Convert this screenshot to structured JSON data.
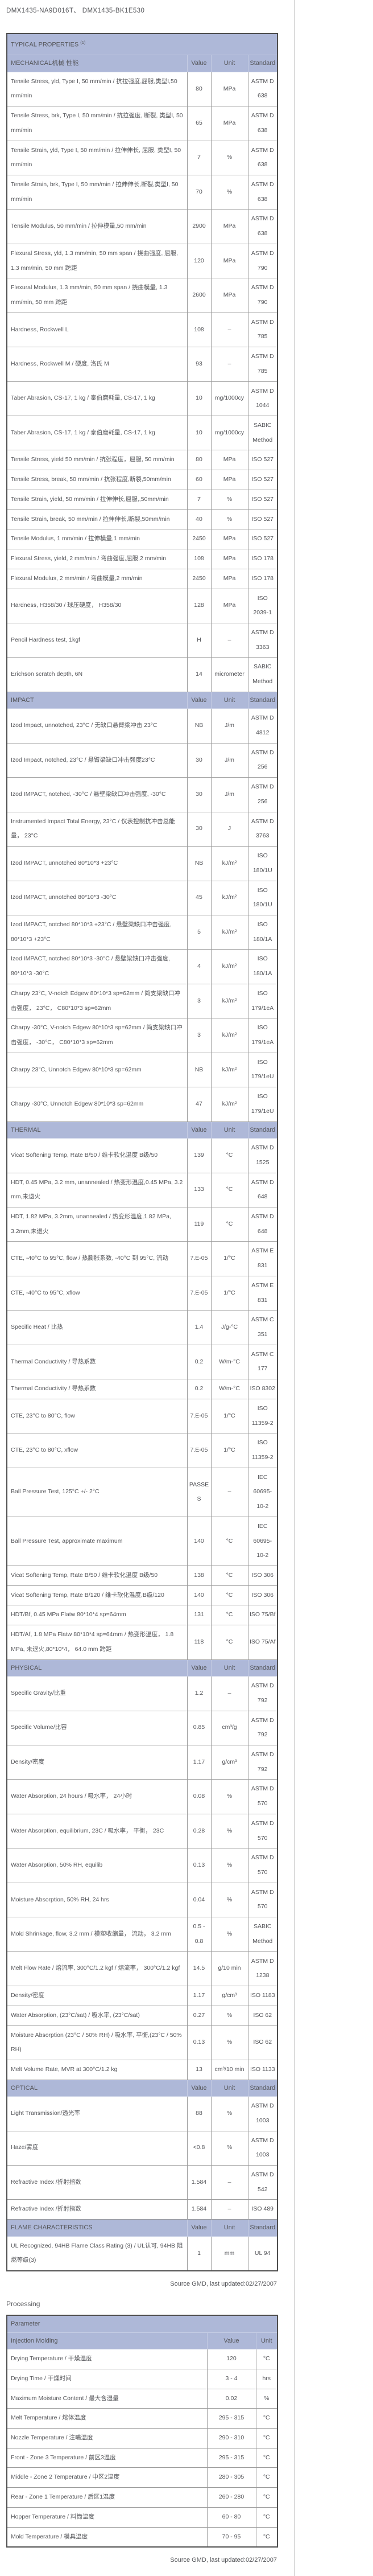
{
  "page": {
    "title": "DMX1435-NA9D016T、 DMX1435-BK1E530",
    "source_note_1": "Source GMD, last updated:02/27/2007",
    "source_note_2": "Source GMD, last updated:02/27/2007"
  },
  "colors": {
    "header_bg": "#aeb8d8",
    "text": "#55565a"
  },
  "typical_properties": {
    "title": "TYPICAL PROPERTIES",
    "title_superscript": "(1)",
    "columns": [
      "Value",
      "Unit",
      "Standard"
    ],
    "sections": [
      {
        "name": "MECHANICAL机械 性能",
        "rows": [
          {
            "property": "Tensile Stress, yld, Type I, 50 mm/min / 抗拉强度,屈服,类型I,50 mm/min",
            "value": "80",
            "unit": "MPa",
            "standard": "ASTM D 638"
          },
          {
            "property": "Tensile Stress, brk, Type I, 50 mm/min / 抗拉强度, 断裂, 类型I, 50 mm/min",
            "value": "65",
            "unit": "MPa",
            "standard": "ASTM D 638"
          },
          {
            "property": "Tensile Strain, yld, Type I, 50 mm/min / 拉伸伸长, 屈服, 类型I, 50 mm/min",
            "value": "7",
            "unit": "%",
            "standard": "ASTM D 638"
          },
          {
            "property": "Tensile Strain, brk, Type I, 50 mm/min / 拉伸伸长,断裂,类型I, 50 mm/min",
            "value": "70",
            "unit": "%",
            "standard": "ASTM D 638"
          },
          {
            "property": "Tensile Modulus, 50 mm/min / 拉伸模量,50 mm/min",
            "value": "2900",
            "unit": "MPa",
            "standard": "ASTM D 638"
          },
          {
            "property": "Flexural Stress, yld, 1.3 mm/min, 50 mm span / 挠曲强度, 屈服, 1.3 mm/min, 50 mm 跨距",
            "value": "120",
            "unit": "MPa",
            "standard": "ASTM D 790"
          },
          {
            "property": "Flexural Modulus, 1.3 mm/min, 50 mm span / 挠曲模量, 1.3 mm/min, 50 mm 跨距",
            "value": "2600",
            "unit": "MPa",
            "standard": "ASTM D 790"
          },
          {
            "property": "Hardness, Rockwell L",
            "value": "108",
            "unit": "–",
            "standard": "ASTM D 785"
          },
          {
            "property": "Hardness, Rockwell M / 硬度, 洛氏 M",
            "value": "93",
            "unit": "–",
            "standard": "ASTM D 785"
          },
          {
            "property": "Taber Abrasion, CS-17, 1 kg / 泰伯磨耗量, CS-17, 1 kg",
            "value": "10",
            "unit": "mg/1000cy",
            "standard": "ASTM D 1044"
          },
          {
            "property": "Taber Abrasion, CS-17, 1 kg / 泰伯磨耗量, CS-17, 1 kg",
            "value": "10",
            "unit": "mg/1000cy",
            "standard": "SABIC Method"
          },
          {
            "property": "Tensile Stress, yield 50 mm/min / 抗张程度，屈服, 50 mm/min",
            "value": "80",
            "unit": "MPa",
            "standard": "ISO 527"
          },
          {
            "property": "Tensile Stress, break, 50 mm/min / 抗张程度,断裂,50mm/min",
            "value": "60",
            "unit": "MPa",
            "standard": "ISO 527"
          },
          {
            "property": "Tensile Strain, yield, 50 mm/min / 拉伸伸长,屈服,,50mm/min",
            "value": "7",
            "unit": "%",
            "standard": "ISO 527"
          },
          {
            "property": "Tensile Strain, break, 50 mm/min / 拉伸伸长,断裂,50mm/min",
            "value": "40",
            "unit": "%",
            "standard": "ISO 527"
          },
          {
            "property": "Tensile Modulus, 1 mm/min / 拉伸模量,1 mm/min",
            "value": "2450",
            "unit": "MPa",
            "standard": "ISO 527"
          },
          {
            "property": "Flexural Stress, yield, 2 mm/min / 弯曲强度,屈服,2 mm/min",
            "value": "108",
            "unit": "MPa",
            "standard": "ISO 178"
          },
          {
            "property": "Flexural Modulus, 2 mm/min / 弯曲模量,2 mm/min",
            "value": "2450",
            "unit": "MPa",
            "standard": "ISO 178"
          },
          {
            "property": "Hardness, H358/30 / 球压硬度， H358/30",
            "value": "128",
            "unit": "MPa",
            "standard": "ISO 2039-1"
          },
          {
            "property": "Pencil Hardness test, 1kgf",
            "value": "H",
            "unit": "–",
            "standard": "ASTM D 3363"
          },
          {
            "property": "Erichson scratch depth, 6N",
            "value": "14",
            "unit": "micrometer",
            "standard": "SABIC Method"
          }
        ]
      },
      {
        "name": "IMPACT",
        "rows": [
          {
            "property": "Izod Impact, unnotched, 23°C / 无缺口悬臂梁冲击 23°C",
            "value": "NB",
            "unit": "J/m",
            "standard": "ASTM D 4812"
          },
          {
            "property": "Izod Impact, notched, 23°C / 悬臂梁缺口冲击强度23°C",
            "value": "30",
            "unit": "J/m",
            "standard": "ASTM D 256"
          },
          {
            "property": "Izod IMPACT, notched, -30°C / 悬壁梁缺口冲击强度, -30°C",
            "value": "30",
            "unit": "J/m",
            "standard": "ASTM D 256"
          },
          {
            "property": "Instrumented Impact Total Energy, 23°C / 仪表控制抗冲击总能量， 23°C",
            "value": "30",
            "unit": "J",
            "standard": "ASTM D 3763"
          },
          {
            "property": "Izod IMPACT, unnotched 80*10*3 +23°C",
            "value": "NB",
            "unit": "kJ/m²",
            "standard": "ISO 180/1U"
          },
          {
            "property": "Izod IMPACT, unnotched 80*10*3 -30°C",
            "value": "45",
            "unit": "kJ/m²",
            "standard": "ISO 180/1U"
          },
          {
            "property": "Izod IMPACT, notched 80*10*3 +23°C / 悬壁梁缺口冲击强度, 80*10*3 +23°C",
            "value": "5",
            "unit": "kJ/m²",
            "standard": "ISO 180/1A"
          },
          {
            "property": "Izod IMPACT, notched 80*10*3 -30°C / 悬壁梁缺口冲击强度, 80*10*3 -30°C",
            "value": "4",
            "unit": "kJ/m²",
            "standard": "ISO 180/1A"
          },
          {
            "property": "Charpy 23°C, V-notch Edgew 80*10*3 sp=62mm / 简支梁缺口冲击强度， 23°C， C80*10*3 sp=62mm",
            "value": "3",
            "unit": "kJ/m²",
            "standard": "ISO 179/1eA"
          },
          {
            "property": "Charpy -30°C, V-notch Edgew 80*10*3 sp=62mm / 简支梁缺口冲击强度， -30°C， C80*10*3 sp=62mm",
            "value": "3",
            "unit": "kJ/m²",
            "standard": "ISO 179/1eA"
          },
          {
            "property": "Charpy 23°C, Unnotch Edgew 80*10*3 sp=62mm",
            "value": "NB",
            "unit": "kJ/m²",
            "standard": "ISO 179/1eU"
          },
          {
            "property": "Charpy -30°C, Unnotch Edgew 80*10*3 sp=62mm",
            "value": "47",
            "unit": "kJ/m²",
            "standard": "ISO 179/1eU"
          }
        ]
      },
      {
        "name": "THERMAL",
        "rows": [
          {
            "property": "Vicat Softening Temp, Rate B/50 / 维卡软化温度 B级/50",
            "value": "139",
            "unit": "°C",
            "standard": "ASTM D 1525"
          },
          {
            "property": "HDT, 0.45 MPa, 3.2 mm, unannealed / 热变形温度,0.45 MPa, 3.2 mm,未退火",
            "value": "133",
            "unit": "°C",
            "standard": "ASTM D 648"
          },
          {
            "property": "HDT, 1.82 MPa, 3.2mm, unannealed / 热变形温度,1.82 MPa, 3.2mm,未退火",
            "value": "119",
            "unit": "°C",
            "standard": "ASTM D 648"
          },
          {
            "property": "CTE, -40°C to 95°C, flow / 热膨胀系数, -40°C 到 95°C, 流动",
            "value": "7.E-05",
            "unit": "1/°C",
            "standard": "ASTM E 831"
          },
          {
            "property": "CTE, -40°C to 95°C, xflow",
            "value": "7.E-05",
            "unit": "1/°C",
            "standard": "ASTM E 831"
          },
          {
            "property": "Specific Heat / 比热",
            "value": "1.4",
            "unit": "J/g-°C",
            "standard": "ASTM C 351"
          },
          {
            "property": "Thermal Conductivity / 导热系数",
            "value": "0.2",
            "unit": "W/m-°C",
            "standard": "ASTM C 177"
          },
          {
            "property": "Thermal Conductivity / 导热系数",
            "value": "0.2",
            "unit": "W/m-°C",
            "standard": "ISO 8302"
          },
          {
            "property": "CTE, 23°C to 80°C, flow",
            "value": "7.E-05",
            "unit": "1/°C",
            "standard": "ISO 11359-2"
          },
          {
            "property": "CTE, 23°C to 80°C, xflow",
            "value": "7.E-05",
            "unit": "1/°C",
            "standard": "ISO 11359-2"
          },
          {
            "property": "Ball Pressure Test, 125°C +/- 2°C",
            "value": "PASSES",
            "unit": "–",
            "standard": "IEC 60695-10-2"
          },
          {
            "property": "Ball Pressure Test, approximate maximum",
            "value": "140",
            "unit": "°C",
            "standard": "IEC 60695-10-2"
          },
          {
            "property": "Vicat Softening Temp, Rate B/50 / 维卡软化温度 B级/50",
            "value": "138",
            "unit": "°C",
            "standard": "ISO 306"
          },
          {
            "property": "Vicat Softening Temp, Rate B/120 / 维卡软化温度,B级/120",
            "value": "140",
            "unit": "°C",
            "standard": "ISO 306"
          },
          {
            "property": "HDT/Bf, 0.45 MPa Flatw 80*10*4 sp=64mm",
            "value": "131",
            "unit": "°C",
            "standard": "ISO 75/Bf"
          },
          {
            "property": "HDT/Af, 1.8 MPa Flatw 80*10*4 sp=64mm / 热变形温度， 1.8 MPa, 未退火,80*10*4， 64.0 mm 跨距",
            "value": "118",
            "unit": "°C",
            "standard": "ISO 75/Af"
          }
        ]
      },
      {
        "name": "PHYSICAL",
        "rows": [
          {
            "property": "Specific Gravity/比重",
            "value": "1.2",
            "unit": "–",
            "standard": "ASTM D 792"
          },
          {
            "property": "Specific Volume/比容",
            "value": "0.85",
            "unit": "cm³/g",
            "standard": "ASTM D 792"
          },
          {
            "property": "Density/密度",
            "value": "1.17",
            "unit": "g/cm³",
            "standard": "ASTM D 792"
          },
          {
            "property": "Water Absorption, 24 hours / 吸水率， 24小时",
            "value": "0.08",
            "unit": "%",
            "standard": "ASTM D 570"
          },
          {
            "property": "Water Absorption, equilibrium, 23C / 吸水率， 平衡， 23C",
            "value": "0.28",
            "unit": "%",
            "standard": "ASTM D 570"
          },
          {
            "property": "Water Absorption, 50% RH, equilib",
            "value": "0.13",
            "unit": "%",
            "standard": "ASTM D 570"
          },
          {
            "property": "Moisture Absorption, 50% RH, 24 hrs",
            "value": "0.04",
            "unit": "%",
            "standard": "ASTM D 570"
          },
          {
            "property": "Mold Shrinkage, flow, 3.2 mm / 模塑收缩量， 流动， 3.2 mm",
            "value": "0.5 - 0.8",
            "unit": "%",
            "standard": "SABIC Method"
          },
          {
            "property": "Melt Flow Rate / 熔流率, 300°C/1.2 kgf / 熔流率， 300°C/1.2 kgf",
            "value": "14.5",
            "unit": "g/10 min",
            "standard": "ASTM D 1238"
          },
          {
            "property": "Density/密度",
            "value": "1.17",
            "unit": "g/cm³",
            "standard": "ISO 1183"
          },
          {
            "property": "Water Absorption, (23°C/sat) / 吸水率, (23°C/sat)",
            "value": "0.27",
            "unit": "%",
            "standard": "ISO 62"
          },
          {
            "property": "Moisture Absorption (23°C / 50% RH) / 吸水率, 平衡,(23°C / 50% RH)",
            "value": "0.13",
            "unit": "%",
            "standard": "ISO 62"
          },
          {
            "property": "Melt Volume Rate, MVR at 300°C/1.2 kg",
            "value": "13",
            "unit": "cm³/10 min",
            "standard": "ISO 1133"
          }
        ]
      },
      {
        "name": "OPTICAL",
        "rows": [
          {
            "property": "Light Transmission/透光率",
            "value": "88",
            "unit": "%",
            "standard": "ASTM D 1003"
          },
          {
            "property": "Haze/雾度",
            "value": "<0.8",
            "unit": "%",
            "standard": "ASTM D 1003"
          },
          {
            "property": "Refractive Index /折射指数",
            "value": "1.584",
            "unit": "–",
            "standard": "ASTM D 542"
          },
          {
            "property": "Refractive Index /折射指数",
            "value": "1.584",
            "unit": "–",
            "standard": "ISO 489"
          }
        ]
      },
      {
        "name": "FLAME CHARACTERISTICS",
        "rows": [
          {
            "property": "UL Recognized, 94HB Flame Class Rating (3) / UL认可, 94HB 阻燃等级(3)",
            "value": "1",
            "unit": "mm",
            "standard": "UL 94"
          }
        ]
      }
    ]
  },
  "processing": {
    "heading": "Processing",
    "param_header": "Parameter",
    "subheader": {
      "label": "Injection Molding",
      "columns": [
        "Value",
        "Unit"
      ]
    },
    "rows": [
      {
        "parameter": "Drying Temperature / 干燥温度",
        "value": "120",
        "unit": "°C"
      },
      {
        "parameter": "Drying Time / 干燥时间",
        "value": "3 - 4",
        "unit": "hrs"
      },
      {
        "parameter": "Maximum Moisture Content / 最大含湿量",
        "value": "0.02",
        "unit": "%"
      },
      {
        "parameter": "Melt Temperature / 熔体温度",
        "value": "295 - 315",
        "unit": "°C"
      },
      {
        "parameter": "Nozzle Temperature / 注嘴温度",
        "value": "290 - 310",
        "unit": "°C"
      },
      {
        "parameter": "Front - Zone 3 Temperature / 前区3温度",
        "value": "295 - 315",
        "unit": "°C"
      },
      {
        "parameter": "Middle - Zone 2 Temperature / 中区2温度",
        "value": "280 - 305",
        "unit": "°C"
      },
      {
        "parameter": "Rear - Zone 1 Temperature / 后区1温度",
        "value": "260 - 280",
        "unit": "°C"
      },
      {
        "parameter": "Hopper Temperature / 料筒温度",
        "value": "60 - 80",
        "unit": "°C"
      },
      {
        "parameter": "Mold Temperature / 模具温度",
        "value": "70 - 95",
        "unit": "°C"
      }
    ]
  }
}
